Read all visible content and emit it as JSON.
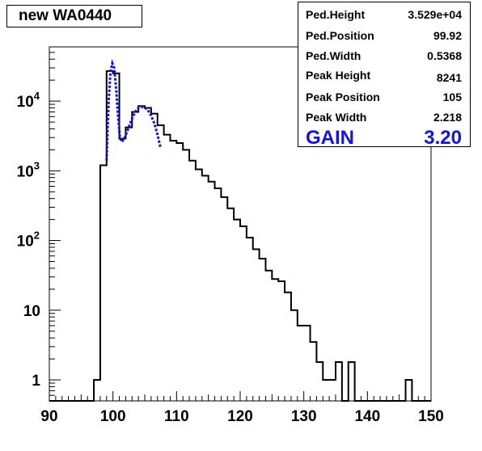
{
  "title": "new WA0440",
  "stats": [
    {
      "label": "Ped.Height",
      "value": "3.529e+04"
    },
    {
      "label": "Ped.Position",
      "value": "99.92"
    },
    {
      "label": "Ped.Width",
      "value": "0.5368"
    },
    {
      "label": "Peak Height",
      "value": "8241"
    },
    {
      "label": "Peak Position",
      "value": "105"
    },
    {
      "label": "Peak Width",
      "value": "2.218"
    },
    {
      "label": "GAIN",
      "value": "3.20"
    }
  ],
  "colors": {
    "histogram": "#000000",
    "fit": "#1111ee"
  },
  "chart_data": {
    "type": "line",
    "title": "new WA0440",
    "xlabel": "",
    "ylabel": "",
    "xlim": [
      90,
      150
    ],
    "ylim": [
      0.5,
      60000
    ],
    "y_scale": "log",
    "x_ticks": [
      90,
      100,
      110,
      120,
      130,
      140,
      150
    ],
    "x_tick_labels": [
      "90",
      "100",
      "110",
      "120",
      "130",
      "140",
      "150"
    ],
    "y_ticks": [
      1,
      10,
      100,
      1000,
      10000
    ],
    "y_tick_labels": [
      "1",
      "10",
      "10^2",
      "10^3",
      "10^4"
    ],
    "grid": false,
    "series": [
      {
        "style": "histogram",
        "bin_width": 1,
        "bin_low_edges": [
          97,
          98,
          99,
          100,
          101,
          102,
          103,
          104,
          105,
          106,
          107,
          108,
          109,
          110,
          111,
          112,
          113,
          114,
          115,
          116,
          117,
          118,
          119,
          120,
          121,
          122,
          123,
          124,
          125,
          126,
          127,
          128,
          129,
          130,
          131,
          132,
          133,
          134,
          135,
          136,
          137,
          138,
          139,
          140,
          141,
          142,
          143,
          144,
          145,
          146,
          147
        ],
        "values": [
          1,
          1200,
          27000,
          25000,
          2900,
          4200,
          7000,
          8500,
          8000,
          6600,
          4500,
          3300,
          2700,
          2500,
          2000,
          1400,
          1050,
          850,
          700,
          560,
          420,
          290,
          200,
          160,
          110,
          75,
          55,
          37,
          28,
          26,
          18,
          10,
          6,
          6,
          3.5,
          1.8,
          1,
          1,
          1.8,
          0.5,
          1.8,
          0.5,
          0.5,
          0.5,
          0.5,
          0.5,
          0.5,
          0.5,
          0.5,
          1,
          0.5
        ]
      },
      {
        "style": "fit",
        "x": [
          99,
          99.3,
          99.6,
          99.9,
          100.2,
          100.5,
          100.8,
          101.1,
          101.4,
          101.8,
          102.2,
          102.6,
          103,
          103.5,
          104,
          104.5,
          105,
          105.5,
          106,
          106.5,
          107,
          107.5
        ],
        "values": [
          1400,
          9000,
          26000,
          35000,
          30000,
          15000,
          6000,
          3000,
          2600,
          2900,
          3600,
          4500,
          5600,
          7000,
          8000,
          8250,
          8100,
          7400,
          6200,
          4800,
          3300,
          2100
        ]
      }
    ]
  }
}
